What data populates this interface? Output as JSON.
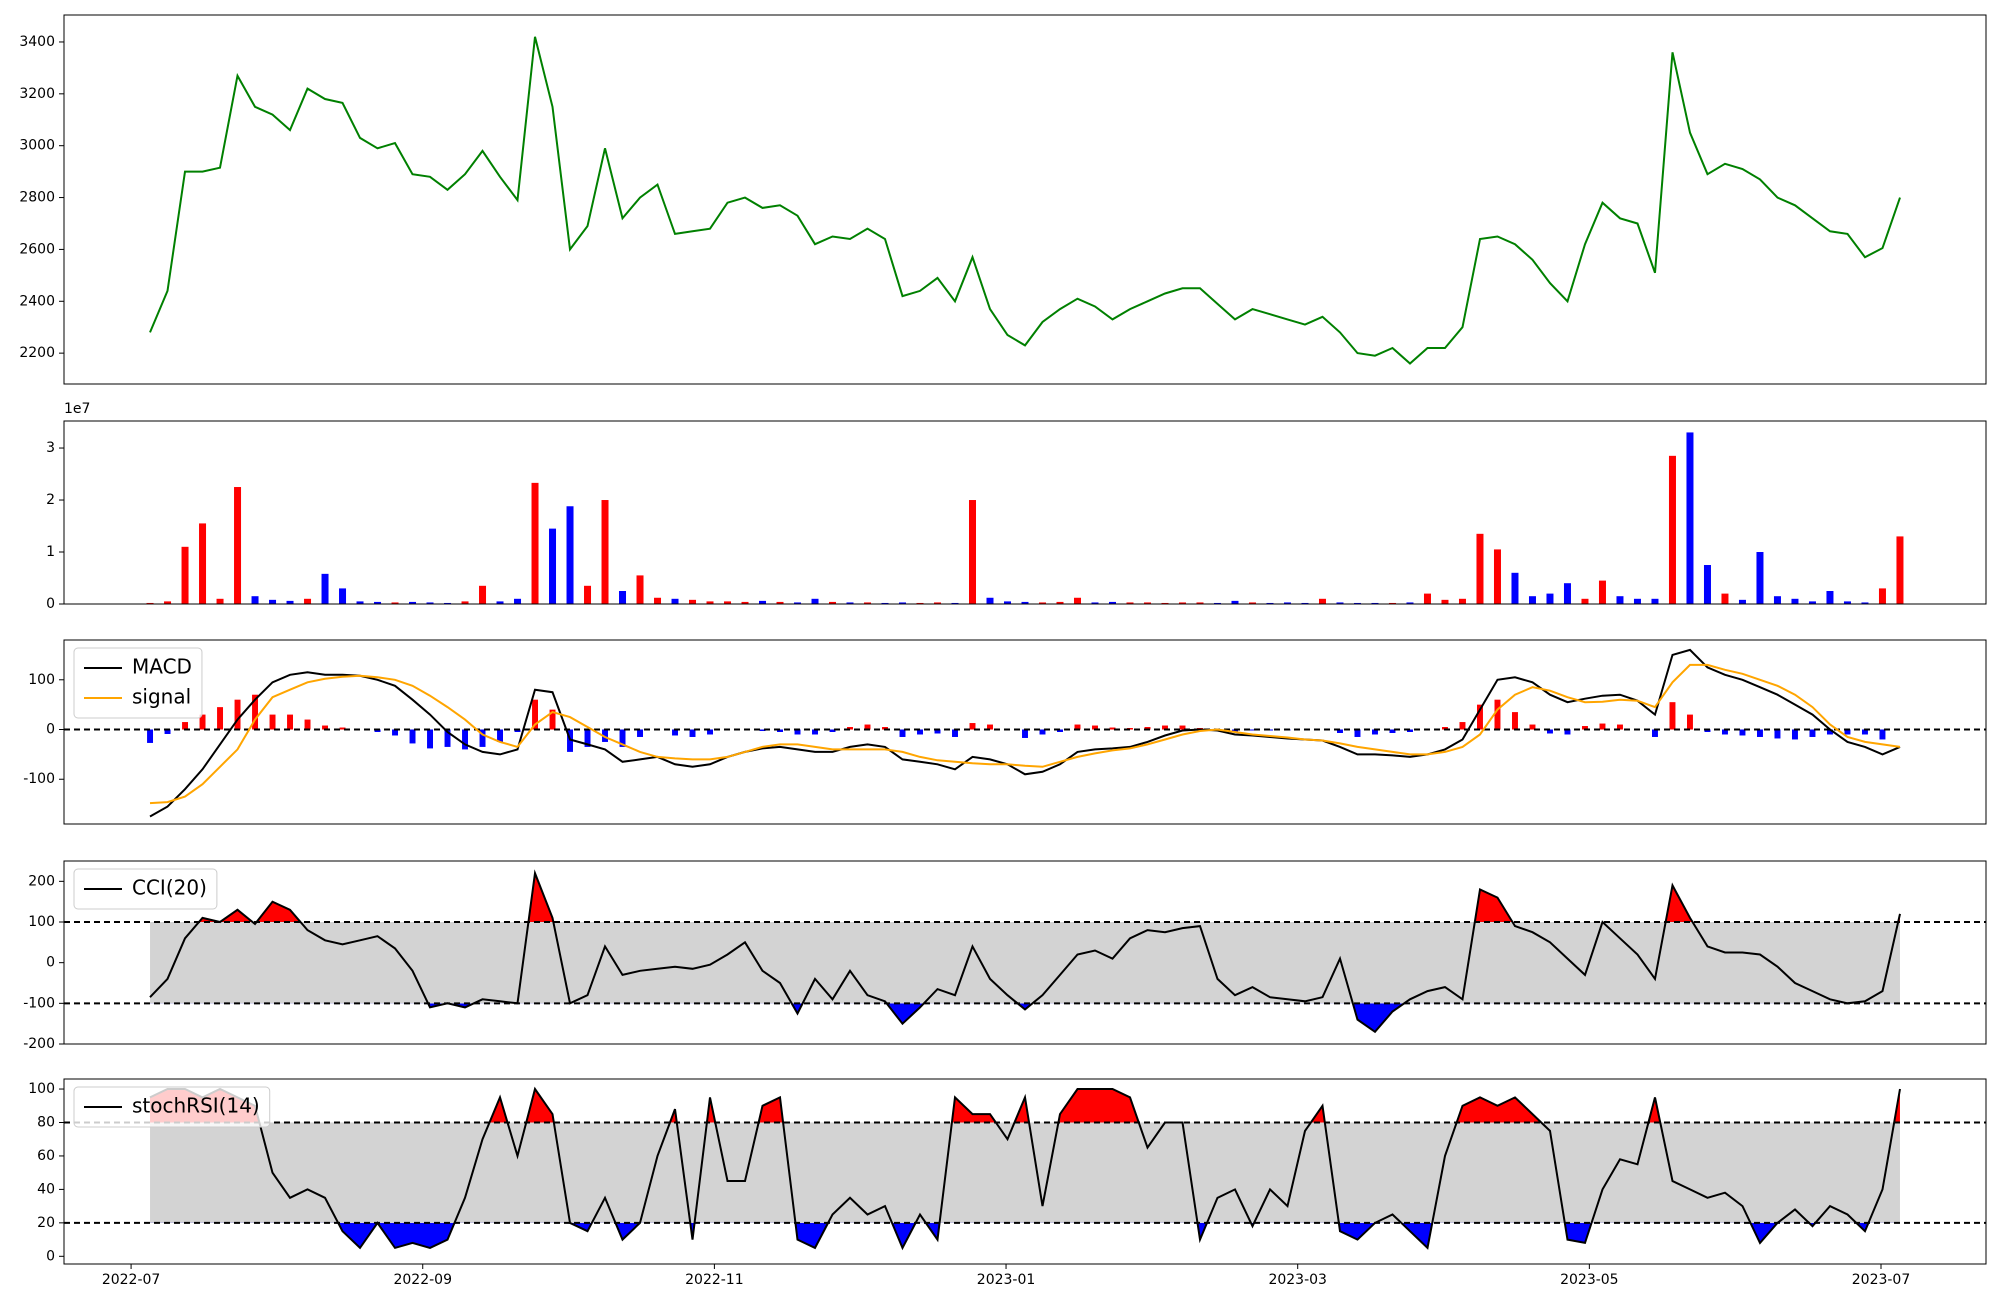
{
  "chart_data": {
    "x": [
      0.13,
      0.25,
      0.37,
      0.49,
      0.61,
      0.73,
      0.85,
      0.97,
      1.09,
      1.21,
      1.33,
      1.45,
      1.57,
      1.69,
      1.81,
      1.93,
      2.05,
      2.17,
      2.29,
      2.41,
      2.53,
      2.65,
      2.77,
      2.89,
      3.01,
      3.13,
      3.25,
      3.37,
      3.49,
      3.61,
      3.73,
      3.85,
      3.97,
      4.09,
      4.21,
      4.33,
      4.45,
      4.57,
      4.69,
      4.81,
      4.93,
      5.05,
      5.17,
      5.29,
      5.41,
      5.53,
      5.65,
      5.77,
      5.89,
      6.01,
      6.13,
      6.25,
      6.37,
      6.49,
      6.61,
      6.73,
      6.85,
      6.97,
      7.09,
      7.21,
      7.33,
      7.45,
      7.57,
      7.69,
      7.81,
      7.93,
      8.05,
      8.17,
      8.29,
      8.41,
      8.53,
      8.65,
      8.77,
      8.89,
      9.01,
      9.13,
      9.25,
      9.37,
      9.49,
      9.61,
      9.73,
      9.85,
      9.97,
      10.09,
      10.21,
      10.33,
      10.45,
      10.57,
      10.69,
      10.81,
      10.93,
      11.05,
      11.17,
      11.29,
      11.41,
      11.53,
      11.65,
      11.77,
      11.89,
      12.01,
      12.13
    ],
    "xlim": [
      -0.46,
      12.72
    ],
    "xticks": [
      {
        "value": 0,
        "label": "2022-07"
      },
      {
        "value": 2,
        "label": "2022-09"
      },
      {
        "value": 4,
        "label": "2022-11"
      },
      {
        "value": 6,
        "label": "2023-01"
      },
      {
        "value": 8,
        "label": "2023-03"
      },
      {
        "value": 10,
        "label": "2023-05"
      },
      {
        "value": 12,
        "label": "2023-07"
      }
    ],
    "panels": [
      {
        "type": "line",
        "ylim": [
          2081,
          3504
        ],
        "yticks": [
          2200,
          2400,
          2600,
          2800,
          3000,
          3200,
          3400
        ],
        "series": [
          {
            "color": "green",
            "values": [
              2280,
              2440,
              2900,
              2900,
              2915,
              3270,
              3150,
              3120,
              3060,
              3220,
              3180,
              3165,
              3030,
              2990,
              3010,
              2890,
              2880,
              2830,
              2890,
              2980,
              2880,
              2790,
              3420,
              3150,
              2600,
              2690,
              2990,
              2720,
              2800,
              2850,
              2660,
              2670,
              2680,
              2780,
              2800,
              2760,
              2770,
              2730,
              2620,
              2650,
              2640,
              2680,
              2640,
              2420,
              2440,
              2490,
              2400,
              2570,
              2370,
              2270,
              2230,
              2320,
              2370,
              2410,
              2380,
              2330,
              2370,
              2400,
              2430,
              2450,
              2450,
              2390,
              2330,
              2370,
              2350,
              2330,
              2310,
              2340,
              2280,
              2200,
              2190,
              2220,
              2160,
              2220,
              2220,
              2300,
              2640,
              2650,
              2620,
              2560,
              2470,
              2400,
              2620,
              2780,
              2720,
              2700,
              2510,
              3360,
              3050,
              2890,
              2930,
              2910,
              2870,
              2800,
              2770,
              2720,
              2670,
              2660,
              2570,
              2605,
              2800
            ]
          }
        ]
      },
      {
        "type": "bar",
        "ylim": [
          0,
          3.52
        ],
        "yticks": [
          0,
          1,
          2,
          3
        ],
        "offset_label": "1e7",
        "up_color": "red",
        "down_color": "blue",
        "values": [
          0.02,
          0.05,
          1.1,
          1.55,
          0.1,
          2.25,
          0.15,
          0.08,
          0.06,
          0.1,
          0.58,
          0.3,
          0.05,
          0.04,
          0.03,
          0.04,
          0.03,
          0.02,
          0.05,
          0.35,
          0.05,
          0.1,
          2.33,
          1.45,
          1.88,
          0.35,
          2.0,
          0.25,
          0.55,
          0.12,
          0.1,
          0.08,
          0.05,
          0.05,
          0.04,
          0.06,
          0.04,
          0.03,
          0.1,
          0.04,
          0.03,
          0.03,
          0.02,
          0.03,
          0.02,
          0.03,
          0.02,
          2.0,
          0.12,
          0.05,
          0.04,
          0.03,
          0.04,
          0.12,
          0.03,
          0.04,
          0.03,
          0.03,
          0.02,
          0.03,
          0.03,
          0.02,
          0.06,
          0.03,
          0.02,
          0.03,
          0.02,
          0.1,
          0.03,
          0.02,
          0.02,
          0.02,
          0.03,
          0.2,
          0.08,
          0.1,
          1.35,
          1.05,
          0.6,
          0.15,
          0.2,
          0.4,
          0.1,
          0.45,
          0.15,
          0.1,
          0.1,
          2.85,
          3.3,
          0.75,
          0.2,
          0.08,
          1.0,
          0.15,
          0.1,
          0.05,
          0.25,
          0.05,
          0.03,
          0.3,
          1.3
        ]
      },
      {
        "type": "macd",
        "ylim": [
          -190,
          180
        ],
        "yticks": [
          -100,
          0,
          100
        ],
        "levels": [
          0
        ],
        "legend": "upper left",
        "hist": {
          "pos_color": "red",
          "neg_color": "blue",
          "values": [
            -27,
            -9,
            15,
            30,
            45,
            60,
            70,
            30,
            30,
            20,
            8,
            4,
            0,
            -5,
            -12,
            -28,
            -38,
            -35,
            -40,
            -35,
            -25,
            -5,
            60,
            40,
            -45,
            -35,
            -25,
            -35,
            -15,
            0,
            -12,
            -15,
            -10,
            0,
            0,
            -3,
            -5,
            -10,
            -10,
            -5,
            5,
            10,
            5,
            -15,
            -10,
            -8,
            -15,
            13,
            10,
            0,
            -17,
            -10,
            -5,
            10,
            8,
            4,
            3,
            5,
            8,
            8,
            3,
            -2,
            -5,
            -2,
            -2,
            -2,
            0,
            0,
            -7,
            -15,
            -10,
            -7,
            -5,
            0,
            5,
            15,
            50,
            60,
            35,
            10,
            -8,
            -10,
            7,
            12,
            10,
            0,
            -15,
            55,
            30,
            -5,
            -10,
            -12,
            -15,
            -18,
            -20,
            -15,
            -10,
            -10,
            -10,
            -20,
            0
          ]
        },
        "series": [
          {
            "name": "MACD",
            "color": "black",
            "values": [
              -175,
              -155,
              -120,
              -80,
              -30,
              20,
              60,
              95,
              110,
              115,
              110,
              110,
              108,
              100,
              88,
              60,
              30,
              -5,
              -30,
              -45,
              -50,
              -40,
              80,
              75,
              -20,
              -30,
              -40,
              -65,
              -60,
              -55,
              -70,
              -75,
              -70,
              -55,
              -45,
              -38,
              -35,
              -40,
              -45,
              -45,
              -35,
              -30,
              -35,
              -60,
              -65,
              -70,
              -80,
              -55,
              -60,
              -70,
              -90,
              -85,
              -70,
              -45,
              -40,
              -38,
              -35,
              -25,
              -12,
              -2,
              0,
              -2,
              -10,
              -12,
              -15,
              -18,
              -20,
              -22,
              -35,
              -50,
              -50,
              -52,
              -55,
              -50,
              -40,
              -20,
              40,
              100,
              105,
              95,
              70,
              55,
              62,
              68,
              70,
              58,
              30,
              150,
              160,
              125,
              110,
              100,
              85,
              70,
              50,
              30,
              0,
              -25,
              -35,
              -50,
              -35
            ]
          },
          {
            "name": "signal",
            "color": "orange",
            "values": [
              -148,
              -146,
              -135,
              -110,
              -75,
              -40,
              20,
              65,
              80,
              95,
              102,
              106,
              108,
              105,
              100,
              88,
              68,
              45,
              20,
              -10,
              -25,
              -35,
              10,
              35,
              25,
              5,
              -15,
              -30,
              -45,
              -55,
              -58,
              -60,
              -60,
              -55,
              -45,
              -35,
              -30,
              -30,
              -35,
              -40,
              -40,
              -40,
              -40,
              -45,
              -55,
              -62,
              -65,
              -68,
              -70,
              -70,
              -73,
              -75,
              -65,
              -55,
              -48,
              -42,
              -38,
              -30,
              -20,
              -10,
              -3,
              0,
              -5,
              -10,
              -13,
              -16,
              -20,
              -22,
              -28,
              -35,
              -40,
              -45,
              -50,
              -50,
              -45,
              -35,
              -10,
              40,
              70,
              85,
              78,
              65,
              55,
              56,
              60,
              58,
              45,
              95,
              130,
              130,
              120,
              112,
              100,
              88,
              70,
              45,
              10,
              -15,
              -25,
              -30,
              -35
            ]
          }
        ]
      },
      {
        "type": "oscillator",
        "ylim": [
          -200,
          250
        ],
        "yticks": [
          -200,
          -100,
          0,
          100,
          200
        ],
        "levels": [
          -100,
          100
        ],
        "legend": "upper left",
        "band_color": "lightgray",
        "above_color": "red",
        "below_color": "blue",
        "series": [
          {
            "name": "CCI(20)",
            "color": "black",
            "values": [
              -85,
              -40,
              60,
              110,
              100,
              130,
              95,
              150,
              130,
              80,
              55,
              45,
              55,
              65,
              35,
              -20,
              -110,
              -100,
              -110,
              -90,
              -95,
              -100,
              220,
              110,
              -100,
              -80,
              40,
              -30,
              -20,
              -15,
              -10,
              -15,
              -5,
              20,
              50,
              -20,
              -50,
              -125,
              -40,
              -90,
              -20,
              -80,
              -95,
              -150,
              -110,
              -65,
              -80,
              40,
              -40,
              -80,
              -115,
              -80,
              -30,
              20,
              30,
              10,
              60,
              80,
              75,
              85,
              90,
              -40,
              -80,
              -60,
              -85,
              -90,
              -95,
              -85,
              10,
              -140,
              -170,
              -120,
              -90,
              -70,
              -60,
              -90,
              180,
              160,
              90,
              75,
              50,
              10,
              -30,
              100,
              60,
              20,
              -40,
              190,
              110,
              40,
              25,
              25,
              20,
              -10,
              -50,
              -70,
              -90,
              -100,
              -95,
              -70,
              120
            ]
          }
        ]
      },
      {
        "type": "oscillator",
        "ylim": [
          -4.6,
          106
        ],
        "yticks": [
          0,
          20,
          40,
          60,
          80,
          100
        ],
        "levels": [
          20,
          80
        ],
        "legend": "upper left",
        "band_color": "lightgray",
        "above_color": "red",
        "below_color": "blue",
        "series": [
          {
            "name": "stochRSI(14)",
            "color": "black",
            "values": [
              95,
              100,
              100,
              95,
              100,
              95,
              90,
              50,
              35,
              40,
              35,
              15,
              5,
              20,
              5,
              8,
              5,
              10,
              35,
              70,
              95,
              60,
              100,
              85,
              20,
              15,
              35,
              10,
              20,
              60,
              88,
              10,
              95,
              45,
              45,
              90,
              95,
              10,
              5,
              25,
              35,
              25,
              30,
              5,
              25,
              10,
              95,
              85,
              85,
              70,
              95,
              30,
              85,
              100,
              100,
              100,
              95,
              65,
              80,
              80,
              10,
              35,
              40,
              18,
              40,
              30,
              75,
              90,
              15,
              10,
              20,
              25,
              15,
              5,
              60,
              90,
              95,
              90,
              95,
              85,
              75,
              10,
              8,
              40,
              58,
              55,
              95,
              45,
              40,
              35,
              38,
              30,
              8,
              20,
              28,
              18,
              30,
              25,
              15,
              40,
              100
            ]
          }
        ]
      }
    ]
  }
}
